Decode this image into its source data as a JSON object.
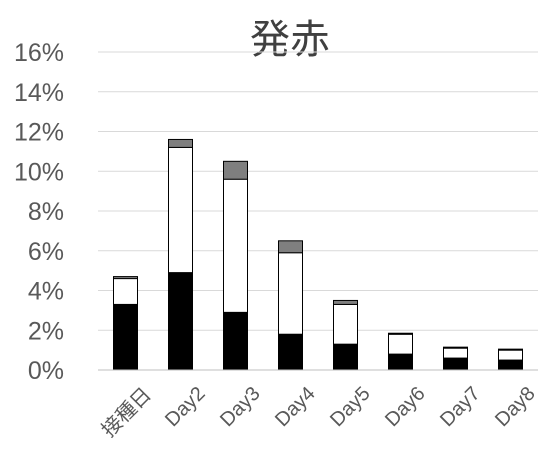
{
  "chart_data": {
    "type": "bar",
    "stacked": true,
    "title": "発赤",
    "xlabel": "",
    "ylabel": "",
    "ylim": [
      0,
      16
    ],
    "y_ticks": [
      "0%",
      "2%",
      "4%",
      "6%",
      "8%",
      "10%",
      "12%",
      "14%",
      "16%"
    ],
    "grid": true,
    "legend": "none",
    "categories": [
      "接種日",
      "Day2",
      "Day3",
      "Day4",
      "Day5",
      "Day6",
      "Day7",
      "Day8"
    ],
    "series": [
      {
        "color": "#000000",
        "values": [
          3.3,
          4.9,
          2.9,
          1.8,
          1.3,
          0.8,
          0.6,
          0.5
        ]
      },
      {
        "color": "#ffffff",
        "values": [
          1.3,
          6.3,
          6.7,
          4.1,
          2.0,
          1.0,
          0.5,
          0.5
        ]
      },
      {
        "color": "#7f7f7f",
        "values": [
          0.1,
          0.4,
          0.9,
          0.6,
          0.2,
          0.05,
          0.05,
          0.05
        ]
      }
    ]
  }
}
